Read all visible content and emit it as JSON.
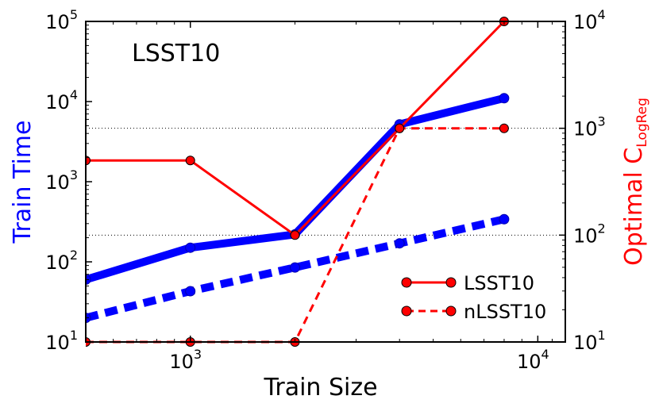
{
  "chart_data": {
    "type": "line",
    "title": "LSST10",
    "xlabel": "Train Size",
    "ylabel_left": "Train Time",
    "ylabel_right_main": "Optimal C",
    "ylabel_right_sub": "LogReg",
    "xscale": "log",
    "xlim": [
      500,
      12000
    ],
    "ylim_left": [
      10,
      100000
    ],
    "ylim_right": [
      10,
      10000
    ],
    "xticks": [
      {
        "base": "10",
        "exp": "3"
      },
      {
        "base": "10",
        "exp": "4"
      }
    ],
    "yticks_left": [
      {
        "base": "10",
        "exp": "1"
      },
      {
        "base": "10",
        "exp": "2"
      },
      {
        "base": "10",
        "exp": "3"
      },
      {
        "base": "10",
        "exp": "4"
      },
      {
        "base": "10",
        "exp": "5"
      }
    ],
    "yticks_right": [
      {
        "base": "10",
        "exp": "1"
      },
      {
        "base": "10",
        "exp": "2"
      },
      {
        "base": "10",
        "exp": "3"
      },
      {
        "base": "10",
        "exp": "4"
      }
    ],
    "series": [
      {
        "name": "LSST10 train time",
        "axis": "left",
        "color": "#0000ff",
        "style": "solid",
        "x": [
          500,
          1000,
          2000,
          4000,
          8000
        ],
        "y": [
          60,
          150,
          220,
          5200,
          11000
        ]
      },
      {
        "name": "nLSST10 train time",
        "axis": "left",
        "color": "#0000ff",
        "style": "dashed",
        "x": [
          500,
          1000,
          2000,
          4000,
          8000
        ],
        "y": [
          20,
          43,
          85,
          170,
          340
        ]
      },
      {
        "name": "LSST10",
        "axis": "right",
        "color": "#ff0000",
        "style": "solid",
        "legend": true,
        "x": [
          500,
          1000,
          2000,
          4000,
          8000
        ],
        "y": [
          500,
          500,
          100,
          1000,
          10000
        ]
      },
      {
        "name": "nLSST10",
        "axis": "right",
        "color": "#ff0000",
        "style": "dashed",
        "legend": true,
        "x": [
          500,
          1000,
          2000,
          4000,
          8000
        ],
        "y": [
          10,
          10,
          10,
          1000,
          1000
        ]
      }
    ],
    "grid_lines_right": [
      100,
      1000
    ],
    "legend": {
      "position": "lower-right",
      "entries": [
        "LSST10",
        "nLSST10"
      ]
    },
    "colors": {
      "left_axis_label": "#0000ff",
      "right_axis_label": "#ff0000"
    }
  }
}
